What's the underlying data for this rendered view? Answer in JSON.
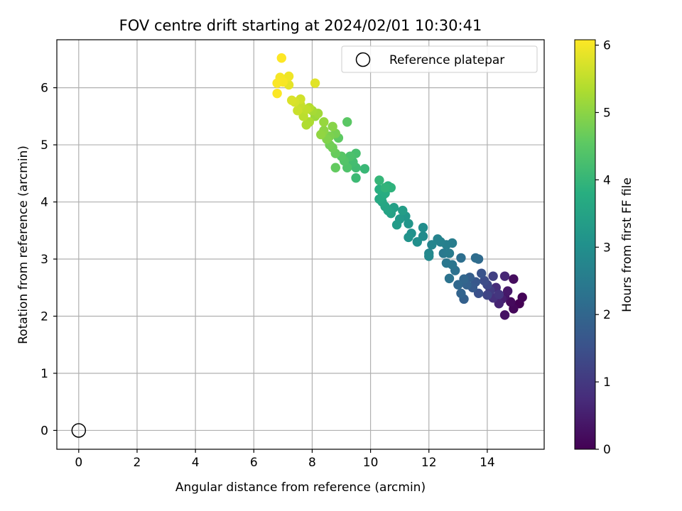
{
  "chart_data": {
    "type": "scatter",
    "title": "FOV centre drift starting at 2024/02/01 10:30:41",
    "xlabel": "Angular distance from reference (arcmin)",
    "ylabel": "Rotation from reference (arcmin)",
    "xlim": [
      -0.75,
      15.95
    ],
    "ylim": [
      -0.33,
      6.84
    ],
    "xticks": [
      0,
      2,
      4,
      6,
      8,
      10,
      12,
      14
    ],
    "yticks": [
      0,
      1,
      2,
      3,
      4,
      5,
      6
    ],
    "grid": true,
    "legend": {
      "position": "top-right",
      "entries": [
        "Reference platepar"
      ]
    },
    "reference_point": {
      "x": 0,
      "y": 0
    },
    "colorbar": {
      "label": "Hours from first FF file",
      "range": [
        0,
        6.08
      ],
      "ticks": [
        0,
        1,
        2,
        3,
        4,
        5,
        6
      ],
      "colormap": "viridis"
    },
    "series": [
      {
        "points": [
          [
            15.1,
            2.22,
            0.0
          ],
          [
            15.2,
            2.33,
            0.05
          ],
          [
            14.9,
            2.13,
            0.1
          ],
          [
            14.8,
            2.25,
            0.15
          ],
          [
            14.9,
            2.65,
            0.2
          ],
          [
            14.6,
            2.02,
            0.3
          ],
          [
            14.6,
            2.35,
            0.35
          ],
          [
            14.7,
            2.44,
            0.4
          ],
          [
            14.5,
            2.3,
            0.5
          ],
          [
            14.4,
            2.22,
            0.6
          ],
          [
            14.6,
            2.7,
            0.65
          ],
          [
            14.3,
            2.5,
            0.75
          ],
          [
            14.2,
            2.32,
            0.85
          ],
          [
            14.4,
            2.38,
            0.95
          ],
          [
            14.1,
            2.45,
            1.05
          ],
          [
            14.2,
            2.7,
            1.15
          ],
          [
            14.0,
            2.37,
            1.25
          ],
          [
            14.0,
            2.55,
            1.3
          ],
          [
            13.9,
            2.62,
            1.4
          ],
          [
            13.7,
            2.4,
            1.5
          ],
          [
            13.8,
            2.75,
            1.55
          ],
          [
            13.6,
            2.6,
            1.65
          ],
          [
            13.5,
            2.5,
            1.7
          ],
          [
            13.4,
            2.68,
            1.8
          ],
          [
            13.2,
            2.3,
            1.85
          ],
          [
            13.3,
            2.55,
            1.9
          ],
          [
            13.1,
            2.4,
            1.95
          ],
          [
            13.2,
            2.65,
            2.0
          ],
          [
            13.0,
            2.55,
            2.05
          ],
          [
            13.7,
            3.0,
            2.1
          ],
          [
            13.6,
            3.02,
            2.15
          ],
          [
            13.1,
            3.02,
            2.2
          ],
          [
            12.9,
            2.8,
            2.25
          ],
          [
            12.7,
            2.66,
            2.3
          ],
          [
            12.8,
            2.9,
            2.35
          ],
          [
            12.6,
            2.93,
            2.4
          ],
          [
            12.5,
            3.1,
            2.45
          ],
          [
            12.7,
            3.1,
            2.5
          ],
          [
            12.8,
            3.28,
            2.55
          ],
          [
            12.6,
            3.25,
            2.6
          ],
          [
            12.4,
            3.3,
            2.65
          ],
          [
            12.3,
            3.35,
            2.7
          ],
          [
            12.1,
            3.25,
            2.75
          ],
          [
            12.0,
            3.1,
            2.8
          ],
          [
            12.0,
            3.05,
            2.85
          ],
          [
            11.8,
            3.4,
            2.9
          ],
          [
            11.8,
            3.55,
            2.95
          ],
          [
            11.6,
            3.3,
            3.0
          ],
          [
            11.4,
            3.45,
            3.05
          ],
          [
            11.3,
            3.38,
            3.1
          ],
          [
            11.3,
            3.62,
            3.15
          ],
          [
            11.2,
            3.75,
            3.2
          ],
          [
            11.0,
            3.7,
            3.25
          ],
          [
            10.9,
            3.6,
            3.3
          ],
          [
            11.1,
            3.85,
            3.35
          ],
          [
            10.8,
            3.9,
            3.4
          ],
          [
            10.7,
            3.8,
            3.45
          ],
          [
            10.6,
            3.85,
            3.5
          ],
          [
            10.5,
            3.92,
            3.55
          ],
          [
            10.4,
            4.0,
            3.6
          ],
          [
            10.3,
            4.05,
            3.65
          ],
          [
            10.4,
            4.1,
            3.7
          ],
          [
            10.5,
            4.15,
            3.75
          ],
          [
            10.3,
            4.22,
            3.8
          ],
          [
            10.6,
            4.28,
            3.85
          ],
          [
            10.7,
            4.25,
            3.9
          ],
          [
            10.5,
            4.25,
            3.95
          ],
          [
            10.3,
            4.38,
            4.0
          ],
          [
            9.8,
            4.58,
            4.05
          ],
          [
            9.5,
            4.42,
            4.1
          ],
          [
            9.5,
            4.6,
            4.15
          ],
          [
            9.4,
            4.7,
            4.2
          ],
          [
            9.5,
            4.85,
            4.25
          ],
          [
            9.3,
            4.8,
            4.3
          ],
          [
            9.2,
            4.6,
            4.35
          ],
          [
            9.1,
            4.72,
            4.4
          ],
          [
            9.0,
            4.8,
            4.45
          ],
          [
            9.2,
            5.4,
            4.5
          ],
          [
            8.9,
            5.12,
            4.55
          ],
          [
            8.8,
            4.6,
            4.6
          ],
          [
            8.8,
            4.85,
            4.65
          ],
          [
            8.7,
            4.95,
            4.7
          ],
          [
            8.6,
            5.0,
            4.75
          ],
          [
            8.8,
            5.2,
            4.8
          ],
          [
            8.6,
            5.15,
            4.85
          ],
          [
            8.5,
            5.1,
            4.9
          ],
          [
            8.7,
            5.32,
            4.95
          ],
          [
            8.4,
            5.25,
            5.0
          ],
          [
            8.3,
            5.18,
            5.05
          ],
          [
            8.4,
            5.4,
            5.1
          ],
          [
            8.1,
            5.5,
            5.15
          ],
          [
            8.2,
            5.55,
            5.2
          ],
          [
            8.0,
            5.6,
            5.25
          ],
          [
            7.9,
            5.4,
            5.3
          ],
          [
            7.8,
            5.35,
            5.35
          ],
          [
            7.9,
            5.65,
            5.4
          ],
          [
            7.7,
            5.5,
            5.45
          ],
          [
            7.8,
            5.62,
            5.5
          ],
          [
            7.6,
            5.7,
            5.55
          ],
          [
            7.5,
            5.6,
            5.6
          ],
          [
            7.6,
            5.8,
            5.65
          ],
          [
            7.4,
            5.75,
            5.7
          ],
          [
            7.3,
            5.78,
            5.75
          ],
          [
            8.1,
            6.08,
            5.8
          ],
          [
            7.2,
            6.05,
            5.85
          ],
          [
            7.1,
            6.15,
            5.9
          ],
          [
            7.2,
            6.2,
            5.95
          ],
          [
            6.9,
            6.18,
            6.0
          ],
          [
            7.0,
            6.1,
            6.02
          ],
          [
            6.8,
            6.08,
            6.04
          ],
          [
            6.8,
            5.9,
            6.06
          ],
          [
            6.95,
            6.52,
            6.08
          ]
        ]
      }
    ]
  }
}
